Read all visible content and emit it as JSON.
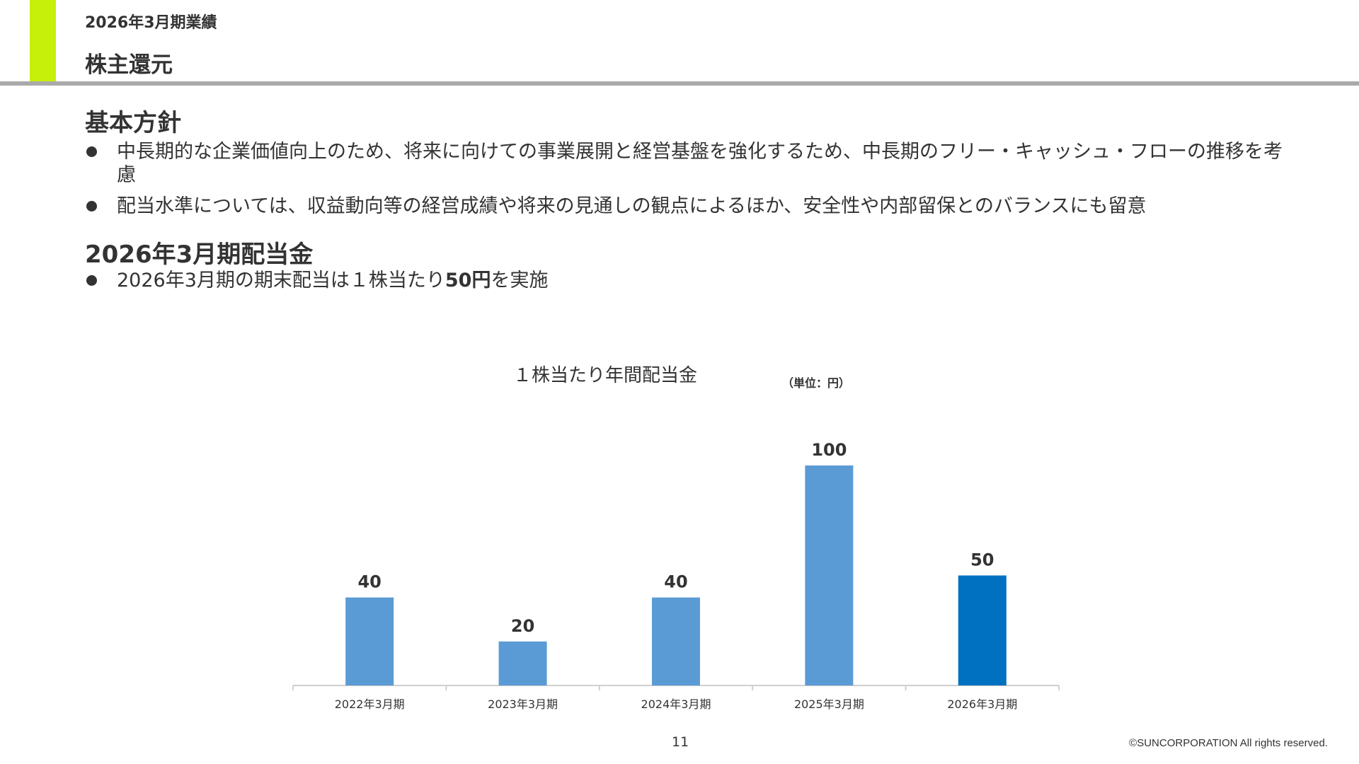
{
  "header": {
    "breadcrumb": "2026年3月期業績",
    "title": "株主還元"
  },
  "policy": {
    "heading": "基本方針",
    "bullets": [
      "中長期的な企業価値向上のため、将来に向けての事業展開と経営基盤を強化するため、中長期のフリー・キャッシュ・フローの推移を考慮",
      "配当水準については、収益動向等の経営成績や将来の見通しの観点によるほか、安全性や内部留保とのバランスにも留意"
    ]
  },
  "dividend": {
    "heading": "2026年3月期配当金",
    "bullet_prefix": "2026年3月期の期末配当は１株当たり",
    "bullet_bold": "50円",
    "bullet_suffix": "を実施"
  },
  "chart_title": "１株当たり年間配当金",
  "chart_unit": "（単位：円）",
  "chart_data": {
    "type": "bar",
    "categories": [
      "2022年3月期",
      "2023年3月期",
      "2024年3月期",
      "2025年3月期",
      "2026年3月期"
    ],
    "values": [
      40,
      20,
      40,
      100,
      50
    ],
    "ylim": [
      0,
      100
    ],
    "colors": [
      "#5b9bd5",
      "#5b9bd5",
      "#5b9bd5",
      "#5b9bd5",
      "#0070c0"
    ],
    "grid": false,
    "legend": "none"
  },
  "footer": {
    "page_number": "11",
    "copyright": "©SUNCORPORATION All rights reserved."
  }
}
